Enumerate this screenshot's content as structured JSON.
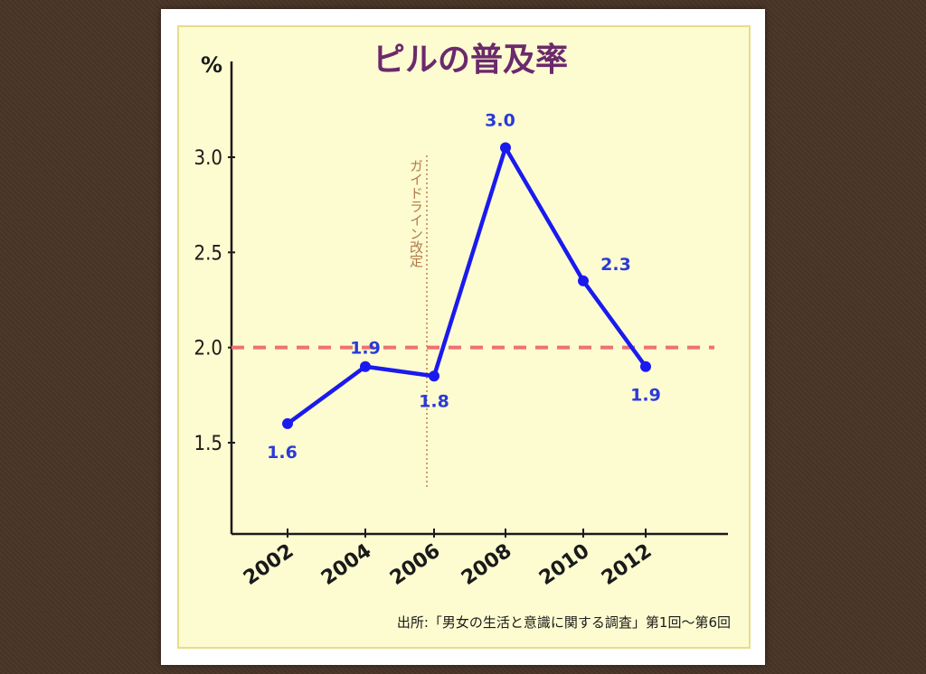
{
  "chart_data": {
    "type": "line",
    "title": "ピルの普及率",
    "ylabel": "%",
    "xlabel": "",
    "x": [
      "2002",
      "2004",
      "2006",
      "2008",
      "2010",
      "2012"
    ],
    "series": [
      {
        "values": [
          1.6,
          1.9,
          1.85,
          3.05,
          2.35,
          1.9
        ],
        "labels": [
          "1.6",
          "1.9",
          "1.8",
          "3.0",
          "2.3",
          "1.9"
        ],
        "color": "#1a1aee"
      }
    ],
    "yticks": [
      "1.5",
      "2.0",
      "2.5",
      "3.0"
    ],
    "ylim": [
      1.0,
      3.4
    ],
    "reference_line": {
      "value": 2.0,
      "style": "dashed",
      "color": "#f07070"
    },
    "annotation": {
      "text": "ガイドライン改定",
      "x": "2006"
    },
    "source": "出所:「男女の生活と意識に関する調査」第1回〜第6回",
    "grid": false
  }
}
